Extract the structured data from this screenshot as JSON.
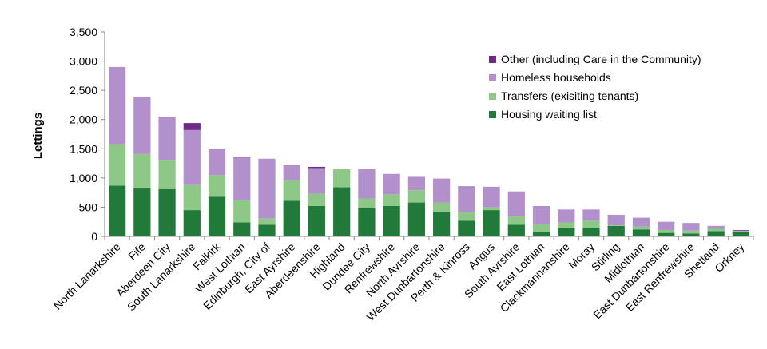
{
  "chart_data": {
    "type": "bar",
    "stacked": true,
    "ylabel": "Lettings",
    "xlabel": "",
    "title": "",
    "ylim": [
      0,
      3500
    ],
    "yticks": [
      0,
      500,
      1000,
      1500,
      2000,
      2500,
      3000,
      3500
    ],
    "ytick_labels": [
      "0",
      "500",
      "1,000",
      "1,500",
      "2,000",
      "2,500",
      "3,000",
      "3,500"
    ],
    "legend_position": "top-right",
    "categories": [
      "North Lanarkshire",
      "Fife",
      "Aberdeen City",
      "South Lanarkshire",
      "Falkirk",
      "West Lothian",
      "Edinburgh, City of",
      "East Ayrshire",
      "Aberdeenshire",
      "Highland",
      "Dundee City",
      "Renfrewshire",
      "North Ayrshire",
      "West Dunbartonshire",
      "Perth & Kinross",
      "Angus",
      "South Ayrshire",
      "East Lothian",
      "Clackmannanshire",
      "Moray",
      "Stirling",
      "Midlothian",
      "East Dunbartonshire",
      "East Renfrewshire",
      "Shetland",
      "Orkney"
    ],
    "series": [
      {
        "name": "Housing waiting list",
        "color": "#217a3a",
        "values": [
          870,
          820,
          810,
          450,
          680,
          240,
          200,
          610,
          520,
          840,
          480,
          520,
          580,
          420,
          270,
          450,
          200,
          80,
          140,
          150,
          180,
          120,
          60,
          50,
          90,
          70
        ]
      },
      {
        "name": "Transfers (exisiting tenants)",
        "color": "#8dc886",
        "values": [
          710,
          590,
          500,
          430,
          370,
          380,
          110,
          350,
          210,
          310,
          170,
          200,
          210,
          160,
          150,
          50,
          140,
          130,
          100,
          120,
          10,
          50,
          50,
          50,
          40,
          20
        ]
      },
      {
        "name": "Homeless households",
        "color": "#b290cc",
        "values": [
          1320,
          980,
          740,
          940,
          450,
          730,
          1020,
          260,
          440,
          0,
          500,
          350,
          230,
          410,
          440,
          350,
          430,
          310,
          220,
          190,
          180,
          150,
          140,
          130,
          50,
          10
        ]
      },
      {
        "name": "Other (including Care in the Community)",
        "color": "#6b2a87",
        "values": [
          0,
          0,
          0,
          120,
          0,
          10,
          0,
          10,
          20,
          0,
          0,
          0,
          0,
          0,
          0,
          0,
          0,
          0,
          0,
          0,
          0,
          0,
          0,
          0,
          0,
          10
        ]
      }
    ],
    "legend_order": [
      "Other (including Care in the Community)",
      "Homeless households",
      "Transfers (exisiting tenants)",
      "Housing waiting list"
    ]
  }
}
